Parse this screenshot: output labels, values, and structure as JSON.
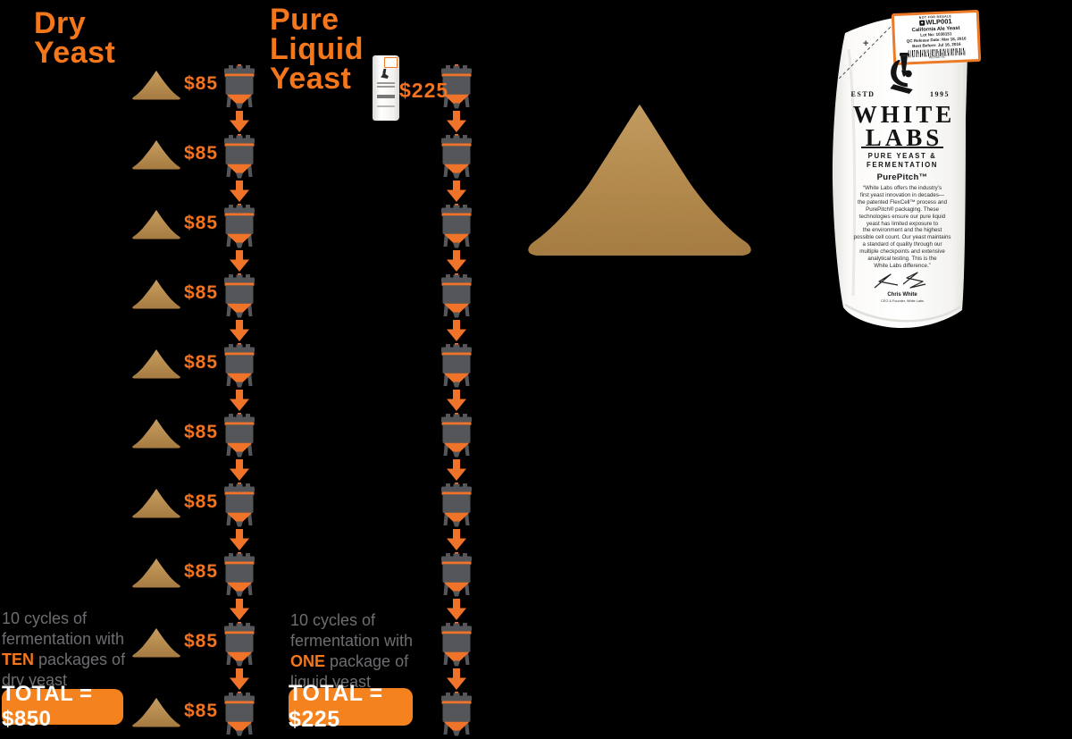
{
  "colors": {
    "background": "#000000",
    "orange": "#F4771B",
    "tank_gray": "#55565A",
    "note_gray": "#6D6E71",
    "yeast_tan": "#CD9A58"
  },
  "dry_column": {
    "title": "Dry\nYeast",
    "cycles": 10,
    "cycle_prices": [
      "$85",
      "$85",
      "$85",
      "$85",
      "$85",
      "$85",
      "$85",
      "$85",
      "$85",
      "$85"
    ],
    "note_before": "10 cycles of\nfermentation with\n",
    "note_word": "TEN",
    "note_after": " packages of\ndry yeast",
    "total_label": "TOTAL = $850"
  },
  "liquid_column": {
    "title": "Pure\nLiquid\nYeast",
    "cycles": 10,
    "package_price": "$225",
    "note_before": "10 cycles of\nfermentation with\n",
    "note_word": "ONE",
    "note_after": " package of\nliquid yeast",
    "total_label": "TOTAL = $225"
  },
  "package": {
    "label": {
      "top_text": "NOT FOR RESALE",
      "product_code": "WLP001",
      "product_name": "California Ale Yeast",
      "lot": "Lot No: 1038151",
      "qc_release": "QC Release Date: Mar 18, 2016",
      "best_before": "Best Before: Jul 16, 2016",
      "sku": "WLP001-XL"
    },
    "estd": "ESTD",
    "year": "1995",
    "brand_line1": "WHITE",
    "brand_line2": "LABS",
    "tagline": "PURE YEAST &\nFERMENTATION",
    "product_name_display": "PurePitch™",
    "quote": "“White Labs offers the industry’s\nfirst yeast innovation in decades—\nthe patented FlexCell™ process and\nPurePitch® packaging. These\ntechnologies ensure our pure liquid\nyeast has limited exposure to\nthe environment and the highest\npossible cell count. Our yeast maintains\na standard of quality through our\nmultiple checkpoints and extensive\nanalytical testing. This is the\nWhite Labs difference.”",
    "signer": "Chris White",
    "signer_title": "CEO & Founder, White Labs"
  }
}
